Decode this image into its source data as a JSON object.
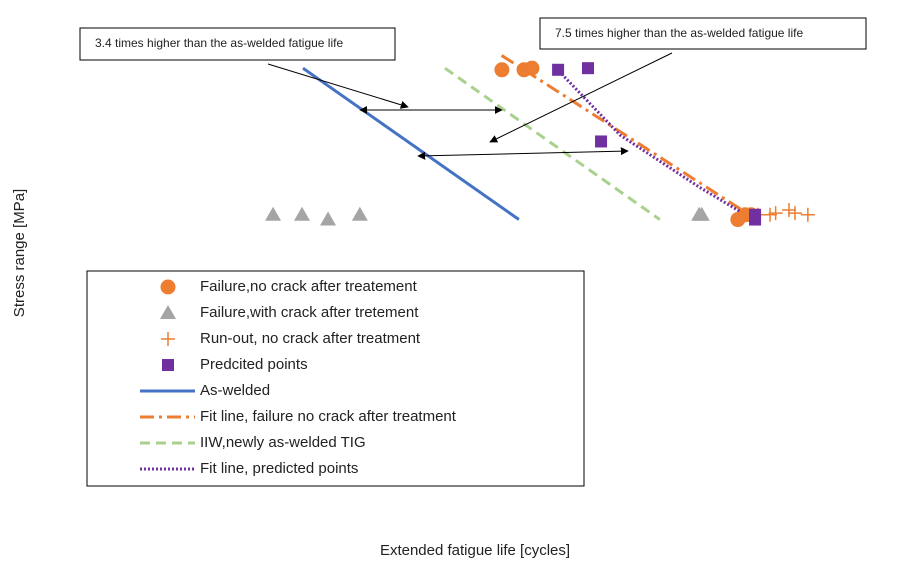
{
  "chart_data": {
    "type": "scatter",
    "x_label": "Extended fatigue life [cycles]",
    "y_label": "Stress range  [MPa]",
    "x_scale": "log",
    "xlim": [
      10000,
      10000000
    ],
    "xticks": [
      10000,
      100000,
      1000000,
      10000000
    ],
    "ylim": [
      100,
      400
    ],
    "yticks": [
      100,
      200,
      300,
      400
    ],
    "grid": true,
    "minor_grid": true,
    "legend": "lower left",
    "annotations": [
      "3.4 times higher than the as-welded fatigue life",
      "7.5 times higher than the as-welded fatigue life"
    ],
    "series": [
      {
        "name": "Failure,no crack after treatement",
        "color": "#ED7D31",
        "marker": "circle",
        "x": [
          399000,
          483000,
          517000,
          3060000,
          3260000,
          3430000
        ],
        "values": [
          365,
          365,
          366,
          271,
          274,
          274
        ]
      },
      {
        "name": "Failure,with crack after tretement",
        "color": "#A5A5A5",
        "marker": "triangle",
        "x": [
          55300,
          71000,
          88900,
          117000,
          2190000,
          2240000
        ],
        "values": [
          274,
          274,
          271,
          274,
          274,
          274
        ]
      },
      {
        "name": "Run-out, no crack after treatment",
        "color": "#ED7D31",
        "marker": "plus",
        "x": [
          3640000,
          4040000,
          4240000,
          4760000,
          5010000,
          5600000
        ],
        "values": [
          274,
          274,
          275,
          277,
          275,
          274
        ]
      },
      {
        "name": "Predcited points",
        "color": "#7030A0",
        "marker": "square",
        "x": [
          648000,
          839000,
          939000,
          3550000,
          3550000
        ],
        "values": [
          365,
          366,
          320,
          274,
          271
        ]
      },
      {
        "name": "As-welded",
        "color": "#4472C4",
        "line": "solid",
        "x": [
          71600,
          462000
        ],
        "values": [
          366,
          271
        ]
      },
      {
        "name": "Fit line, failure no crack after treatment",
        "color": "#ED7D31",
        "line": "dashdot",
        "x": [
          398000,
          3170000
        ],
        "values": [
          374,
          277
        ]
      },
      {
        "name": "IIW,newly as-welded TIG",
        "color": "#A9D18E",
        "line": "dash",
        "x": [
          244000,
          1560000
        ],
        "values": [
          366,
          271
        ]
      },
      {
        "name": "Fit line, predicted points",
        "color": "#7030A0",
        "line": "dot",
        "x": [
          637000,
          1107000,
          2210000,
          3120000
        ],
        "values": [
          366,
          324,
          291,
          276
        ]
      }
    ]
  }
}
